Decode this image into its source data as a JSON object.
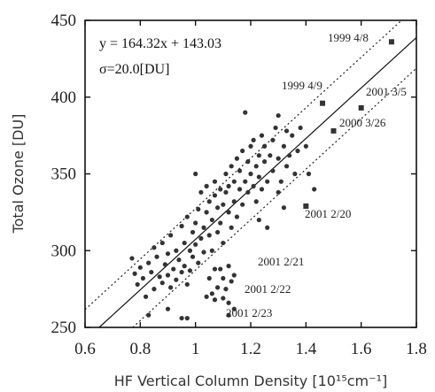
{
  "chart_data": {
    "type": "scatter",
    "title": "",
    "xlabel": "HF Vertical Column Density [10¹⁵cm⁻¹]",
    "ylabel": "Total Ozone [DU]",
    "xlim": [
      0.6,
      1.8
    ],
    "ylim": [
      250,
      450
    ],
    "xticks": [
      "0.6",
      "0.8",
      "1",
      "1.2",
      "1.4",
      "1.6",
      "1.8"
    ],
    "yticks": [
      "250",
      "300",
      "350",
      "400",
      "450"
    ],
    "fit": {
      "slope": 164.32,
      "intercept": 143.03,
      "sigma": 20.0
    },
    "equation_label": "y = 164.32x + 143.03",
    "sigma_label": "σ=20.0[DU]",
    "grid": false,
    "points": [
      [
        0.77,
        295
      ],
      [
        0.78,
        285
      ],
      [
        0.79,
        278
      ],
      [
        0.8,
        289
      ],
      [
        0.81,
        282
      ],
      [
        0.82,
        270
      ],
      [
        0.83,
        292
      ],
      [
        0.84,
        286
      ],
      [
        0.85,
        302
      ],
      [
        0.85,
        275
      ],
      [
        0.86,
        296
      ],
      [
        0.87,
        283
      ],
      [
        0.88,
        279
      ],
      [
        0.88,
        305
      ],
      [
        0.89,
        291
      ],
      [
        0.9,
        284
      ],
      [
        0.9,
        298
      ],
      [
        0.91,
        310
      ],
      [
        0.91,
        276
      ],
      [
        0.92,
        288
      ],
      [
        0.93,
        300
      ],
      [
        0.93,
        281
      ],
      [
        0.94,
        294
      ],
      [
        0.95,
        286
      ],
      [
        0.95,
        316
      ],
      [
        0.96,
        290
      ],
      [
        0.96,
        305
      ],
      [
        0.97,
        278
      ],
      [
        0.97,
        322
      ],
      [
        0.98,
        300
      ],
      [
        0.98,
        287
      ],
      [
        0.99,
        312
      ],
      [
        0.99,
        296
      ],
      [
        1.0,
        318
      ],
      [
        1.0,
        304
      ],
      [
        1.0,
        350
      ],
      [
        1.01,
        292
      ],
      [
        1.01,
        327
      ],
      [
        1.02,
        308
      ],
      [
        1.02,
        338
      ],
      [
        1.03,
        315
      ],
      [
        1.03,
        299
      ],
      [
        1.04,
        325
      ],
      [
        1.04,
        342
      ],
      [
        1.05,
        310
      ],
      [
        1.05,
        332
      ],
      [
        1.06,
        300
      ],
      [
        1.06,
        320
      ],
      [
        1.07,
        336
      ],
      [
        1.07,
        345
      ],
      [
        1.08,
        312
      ],
      [
        1.08,
        328
      ],
      [
        1.09,
        340
      ],
      [
        1.09,
        318
      ],
      [
        1.1,
        330
      ],
      [
        1.1,
        305
      ],
      [
        1.11,
        338
      ],
      [
        1.11,
        350
      ],
      [
        1.12,
        325
      ],
      [
        1.12,
        342
      ],
      [
        1.13,
        315
      ],
      [
        1.13,
        355
      ],
      [
        1.14,
        332
      ],
      [
        1.14,
        345
      ],
      [
        1.15,
        322
      ],
      [
        1.15,
        360
      ],
      [
        1.16,
        340
      ],
      [
        1.16,
        352
      ],
      [
        1.17,
        330
      ],
      [
        1.17,
        365
      ],
      [
        1.18,
        345
      ],
      [
        1.18,
        390
      ],
      [
        1.19,
        358
      ],
      [
        1.19,
        338
      ],
      [
        1.2,
        350
      ],
      [
        1.2,
        368
      ],
      [
        1.21,
        342
      ],
      [
        1.21,
        372
      ],
      [
        1.22,
        355
      ],
      [
        1.22,
        332
      ],
      [
        1.23,
        362
      ],
      [
        1.23,
        348
      ],
      [
        1.24,
        375
      ],
      [
        1.24,
        340
      ],
      [
        1.25,
        358
      ],
      [
        1.25,
        368
      ],
      [
        1.26,
        345
      ],
      [
        1.26,
        315
      ],
      [
        1.27,
        362
      ],
      [
        1.28,
        352
      ],
      [
        1.28,
        372
      ],
      [
        1.29,
        380
      ],
      [
        1.3,
        360
      ],
      [
        1.3,
        388
      ],
      [
        1.31,
        345
      ],
      [
        1.32,
        368
      ],
      [
        1.33,
        355
      ],
      [
        1.33,
        378
      ],
      [
        1.34,
        362
      ],
      [
        1.35,
        375
      ],
      [
        1.36,
        350
      ],
      [
        1.37,
        365
      ],
      [
        1.38,
        380
      ],
      [
        1.4,
        368
      ],
      [
        1.41,
        350
      ],
      [
        1.43,
        340
      ],
      [
        1.3,
        338
      ],
      [
        1.32,
        328
      ],
      [
        1.23,
        320
      ],
      [
        0.83,
        258
      ],
      [
        0.9,
        262
      ],
      [
        0.95,
        256
      ],
      [
        0.97,
        256
      ],
      [
        1.09,
        288
      ],
      [
        1.1,
        282
      ],
      [
        1.12,
        290
      ],
      [
        1.13,
        280
      ],
      [
        1.11,
        275
      ],
      [
        1.14,
        284
      ],
      [
        1.06,
        272
      ],
      [
        1.07,
        268
      ],
      [
        1.08,
        276
      ],
      [
        1.1,
        269
      ],
      [
        1.12,
        266
      ],
      [
        1.05,
        282
      ],
      [
        1.07,
        288
      ],
      [
        1.04,
        270
      ],
      [
        1.12,
        258
      ],
      [
        1.14,
        262
      ]
    ],
    "highlighted_points": [
      [
        1.71,
        436
      ],
      [
        1.46,
        396
      ],
      [
        1.6,
        393
      ],
      [
        1.5,
        378
      ],
      [
        1.4,
        329
      ]
    ],
    "annotations": [
      {
        "text": "1999 4/8"
      },
      {
        "text": "1999 4/9"
      },
      {
        "text": "2001 3/5"
      },
      {
        "text": "2000 3/26"
      },
      {
        "text": "2001 2/20"
      },
      {
        "text": "2001 2/21"
      },
      {
        "text": "2001 2/22"
      },
      {
        "text": "2001 2/23"
      }
    ]
  }
}
